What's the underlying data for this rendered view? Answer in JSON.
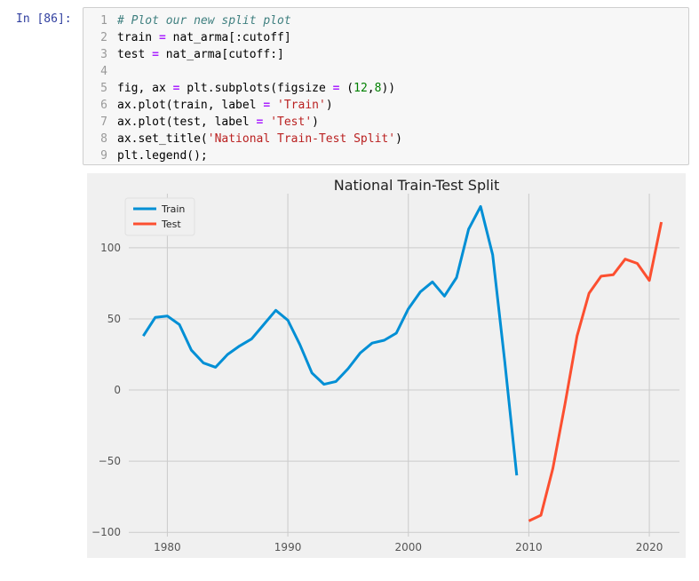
{
  "cell": {
    "prompt": "In [86]:",
    "lines": [
      {
        "no": "1",
        "tokens": [
          {
            "t": "# Plot our new split plot",
            "c": "comment"
          }
        ]
      },
      {
        "no": "2",
        "tokens": [
          {
            "t": "train ",
            "c": ""
          },
          {
            "t": "=",
            "c": "op"
          },
          {
            "t": " nat_arma[:cutoff]",
            "c": ""
          }
        ]
      },
      {
        "no": "3",
        "tokens": [
          {
            "t": "test ",
            "c": ""
          },
          {
            "t": "=",
            "c": "op"
          },
          {
            "t": " nat_arma[cutoff:]",
            "c": ""
          }
        ]
      },
      {
        "no": "4",
        "tokens": []
      },
      {
        "no": "5",
        "tokens": [
          {
            "t": "fig, ax ",
            "c": ""
          },
          {
            "t": "=",
            "c": "op"
          },
          {
            "t": " plt.subplots(figsize ",
            "c": ""
          },
          {
            "t": "=",
            "c": "op"
          },
          {
            "t": " (",
            "c": ""
          },
          {
            "t": "12",
            "c": "num"
          },
          {
            "t": ",",
            "c": ""
          },
          {
            "t": "8",
            "c": "num"
          },
          {
            "t": "))",
            "c": ""
          }
        ]
      },
      {
        "no": "6",
        "tokens": [
          {
            "t": "ax.plot(train, label ",
            "c": ""
          },
          {
            "t": "=",
            "c": "op"
          },
          {
            "t": " ",
            "c": ""
          },
          {
            "t": "'Train'",
            "c": "str"
          },
          {
            "t": ")",
            "c": ""
          }
        ]
      },
      {
        "no": "7",
        "tokens": [
          {
            "t": "ax.plot(test, label ",
            "c": ""
          },
          {
            "t": "=",
            "c": "op"
          },
          {
            "t": " ",
            "c": ""
          },
          {
            "t": "'Test'",
            "c": "str"
          },
          {
            "t": ")",
            "c": ""
          }
        ]
      },
      {
        "no": "8",
        "tokens": [
          {
            "t": "ax.set_title(",
            "c": ""
          },
          {
            "t": "'National Train-Test Split'",
            "c": "str"
          },
          {
            "t": ")",
            "c": ""
          }
        ]
      },
      {
        "no": "9",
        "tokens": [
          {
            "t": "plt.legend();",
            "c": ""
          }
        ]
      }
    ]
  },
  "chart_data": {
    "type": "line",
    "title": "National Train-Test Split",
    "xlabel": "",
    "ylabel": "",
    "xlim": [
      1976.8,
      2022.5
    ],
    "ylim": [
      -103,
      138
    ],
    "xticks": [
      1980,
      1990,
      2000,
      2010,
      2020
    ],
    "yticks": [
      -100,
      -50,
      0,
      50,
      100
    ],
    "ytick_labels": [
      "−100",
      "−50",
      "0",
      "50",
      "100"
    ],
    "grid": true,
    "legend": "top-left",
    "series": [
      {
        "name": "Train",
        "color": "#008fd5",
        "x": [
          1978,
          1979,
          1980,
          1981,
          1982,
          1983,
          1984,
          1985,
          1986,
          1987,
          1988,
          1989,
          1990,
          1991,
          1992,
          1993,
          1994,
          1995,
          1996,
          1997,
          1998,
          1999,
          2000,
          2001,
          2002,
          2003,
          2004,
          2005,
          2006,
          2007,
          2008,
          2009
        ],
        "y": [
          38,
          51,
          52,
          46,
          28,
          19,
          16,
          25,
          31,
          36,
          46,
          56,
          49,
          32,
          12,
          4,
          6,
          15,
          26,
          33,
          35,
          40,
          57,
          69,
          76,
          66,
          79,
          113,
          129,
          95,
          20,
          -60
        ]
      },
      {
        "name": "Test",
        "color": "#fc4f30",
        "x": [
          2010,
          2011,
          2012,
          2013,
          2014,
          2015,
          2016,
          2017,
          2018,
          2019,
          2020,
          2021
        ],
        "y": [
          -92,
          -88,
          -55,
          -10,
          38,
          68,
          80,
          81,
          92,
          89,
          77,
          118
        ]
      }
    ]
  }
}
